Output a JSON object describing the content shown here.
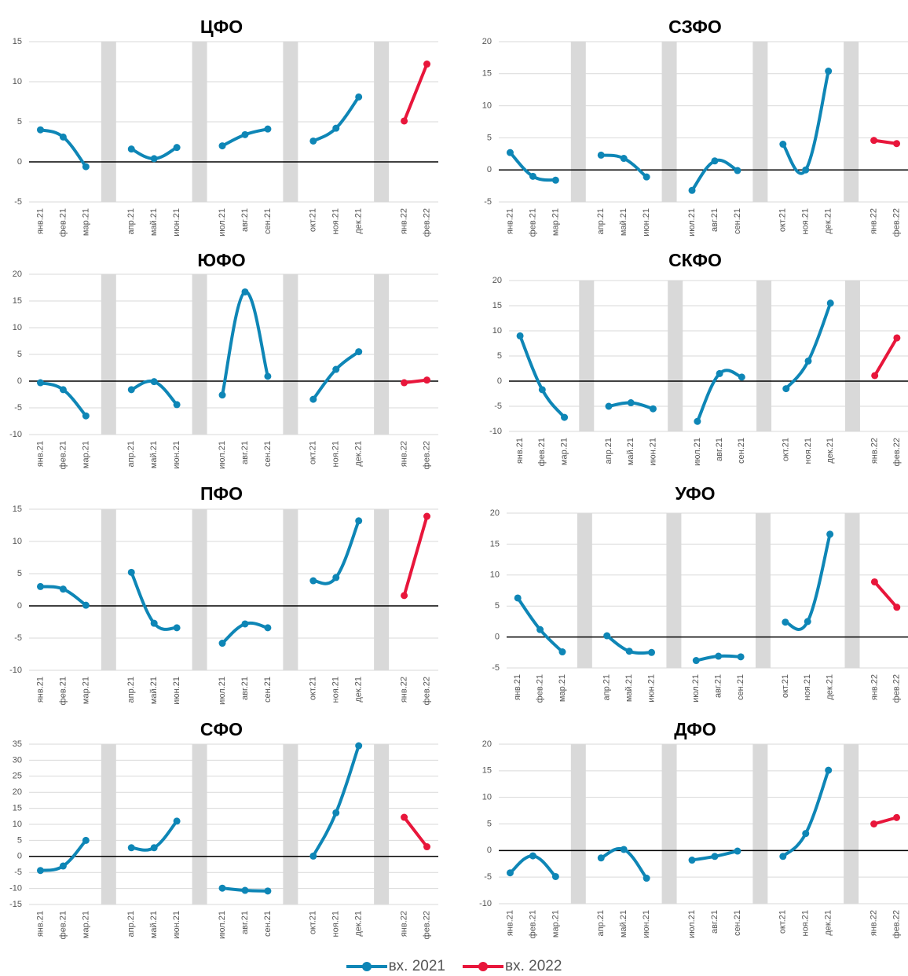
{
  "colors": {
    "s2021": "#0E86B6",
    "s2022": "#E8163B",
    "band": "#D9D9D9",
    "grid": "#D9D9D9",
    "tick": "#555555",
    "zero": "#000000"
  },
  "legend": [
    {
      "label": "вх. 2021",
      "color": "#0E86B6"
    },
    {
      "label": "вх. 2022",
      "color": "#E8163B"
    }
  ],
  "chart_data": [
    {
      "type": "line",
      "title": "ЦФО",
      "ylim": [
        -5,
        15
      ],
      "yticks": [
        -5,
        0,
        5,
        10,
        15
      ],
      "categories": [
        "янв.21",
        "фев.21",
        "мар.21",
        "",
        "апр.21",
        "май.21",
        "июн.21",
        "",
        "июл.21",
        "авг.21",
        "сен.21",
        "",
        "окт.21",
        "ноя.21",
        "дек.21",
        "",
        "янв.22",
        "фев.22"
      ],
      "series": [
        {
          "name": "вх. 2021",
          "segments": [
            [
              4.0,
              3.1,
              -0.6
            ],
            [
              1.6,
              0.4,
              1.8
            ],
            [
              2.0,
              3.4,
              4.1
            ],
            [
              2.6,
              4.2,
              8.1
            ]
          ]
        },
        {
          "name": "вх. 2022",
          "segments": [
            [
              5.1,
              12.2
            ]
          ]
        }
      ]
    },
    {
      "type": "line",
      "title": "СЗФО",
      "ylim": [
        -5,
        20
      ],
      "yticks": [
        -5,
        0,
        5,
        10,
        15,
        20
      ],
      "categories": [
        "янв.21",
        "фев.21",
        "мар.21",
        "",
        "апр.21",
        "май.21",
        "июн.21",
        "",
        "июл.21",
        "авг.21",
        "сен.21",
        "",
        "окт.21",
        "ноя.21",
        "дек.21",
        "",
        "янв.22",
        "фев.22"
      ],
      "series": [
        {
          "name": "вх. 2021",
          "segments": [
            [
              2.7,
              -1.0,
              -1.6
            ],
            [
              2.3,
              1.8,
              -1.1
            ],
            [
              -3.2,
              1.4,
              -0.1
            ],
            [
              4.0,
              0.0,
              15.4
            ]
          ]
        },
        {
          "name": "вх. 2022",
          "segments": [
            [
              4.6,
              4.1
            ]
          ]
        }
      ]
    },
    {
      "type": "line",
      "title": "ЮФО",
      "ylim": [
        -10,
        20
      ],
      "yticks": [
        -10,
        -5,
        0,
        5,
        10,
        15,
        20
      ],
      "categories": [
        "янв.21",
        "фев.21",
        "мар.21",
        "",
        "апр.21",
        "май.21",
        "июн.21",
        "",
        "июл.21",
        "авг.21",
        "сен.21",
        "",
        "окт.21",
        "ноя.21",
        "дек.21",
        "",
        "янв.22",
        "фев.22"
      ],
      "series": [
        {
          "name": "вх. 2021",
          "segments": [
            [
              -0.3,
              -1.6,
              -6.5
            ],
            [
              -1.6,
              -0.1,
              -4.4
            ],
            [
              -2.6,
              16.7,
              0.9
            ],
            [
              -3.4,
              2.2,
              5.5
            ]
          ]
        },
        {
          "name": "вх. 2022",
          "segments": [
            [
              -0.3,
              0.2
            ]
          ]
        }
      ]
    },
    {
      "type": "line",
      "title": "СКФО",
      "ylim": [
        -10,
        20
      ],
      "yticks": [
        -10,
        -5,
        0,
        5,
        10,
        15,
        20
      ],
      "categories": [
        "янв.21",
        "фев.21",
        "мар.21",
        "",
        "апр.21",
        "май.21",
        "июн.21",
        "",
        "июл.21",
        "авг.21",
        "сен.21",
        "",
        "окт.21",
        "ноя.21",
        "дек.21",
        "",
        "янв.22",
        "фев.22"
      ],
      "series": [
        {
          "name": "вх. 2021",
          "segments": [
            [
              9.0,
              -1.7,
              -7.2
            ],
            [
              -5.0,
              -4.3,
              -5.5
            ],
            [
              -8.0,
              1.5,
              0.8
            ],
            [
              -1.5,
              4.0,
              15.5
            ]
          ]
        },
        {
          "name": "вх. 2022",
          "segments": [
            [
              1.1,
              8.6
            ]
          ]
        }
      ]
    },
    {
      "type": "line",
      "title": "ПФО",
      "ylim": [
        -10,
        15
      ],
      "yticks": [
        -10,
        -5,
        0,
        5,
        10,
        15
      ],
      "categories": [
        "янв.21",
        "фев.21",
        "мар.21",
        "",
        "апр.21",
        "май.21",
        "июн.21",
        "",
        "июл.21",
        "авг.21",
        "сен.21",
        "",
        "окт.21",
        "ноя.21",
        "дек.21",
        "",
        "янв.22",
        "фев.22"
      ],
      "series": [
        {
          "name": "вх. 2021",
          "segments": [
            [
              3.0,
              2.6,
              0.1
            ],
            [
              5.2,
              -2.7,
              -3.4
            ],
            [
              -5.8,
              -2.8,
              -3.4
            ],
            [
              3.9,
              4.4,
              13.2
            ]
          ]
        },
        {
          "name": "вх. 2022",
          "segments": [
            [
              1.6,
              13.9
            ]
          ]
        }
      ]
    },
    {
      "type": "line",
      "title": "УФО",
      "ylim": [
        -5,
        20
      ],
      "yticks": [
        -5,
        0,
        5,
        10,
        15,
        20
      ],
      "categories": [
        "янв.21",
        "фев.21",
        "мар.21",
        "",
        "апр.21",
        "май.21",
        "июн.21",
        "",
        "июл.21",
        "авг.21",
        "сен.21",
        "",
        "окт.21",
        "ноя.21",
        "дек.21",
        "",
        "янв.22",
        "фев.22"
      ],
      "series": [
        {
          "name": "вх. 2021",
          "segments": [
            [
              6.3,
              1.2,
              -2.4
            ],
            [
              0.2,
              -2.3,
              -2.5
            ],
            [
              -3.8,
              -3.1,
              -3.2
            ],
            [
              2.4,
              2.5,
              16.6
            ]
          ]
        },
        {
          "name": "вх. 2022",
          "segments": [
            [
              8.9,
              4.8
            ]
          ]
        }
      ]
    },
    {
      "type": "line",
      "title": "СФО",
      "ylim": [
        -15,
        35
      ],
      "yticks": [
        -15,
        -10,
        -5,
        0,
        5,
        10,
        15,
        20,
        25,
        30,
        35
      ],
      "categories": [
        "янв.21",
        "фев.21",
        "мар.21",
        "",
        "апр.21",
        "май.21",
        "июн.21",
        "",
        "июл.21",
        "авг.21",
        "сен.21",
        "",
        "окт.21",
        "ноя.21",
        "дек.21",
        "",
        "янв.22",
        "фев.22"
      ],
      "series": [
        {
          "name": "вх. 2021",
          "segments": [
            [
              -4.4,
              -3.0,
              5.0
            ],
            [
              2.7,
              2.7,
              11.0
            ],
            [
              -9.9,
              -10.6,
              -10.8
            ],
            [
              0.1,
              13.6,
              34.5
            ]
          ]
        },
        {
          "name": "вх. 2022",
          "segments": [
            [
              12.2,
              3.0
            ]
          ]
        }
      ]
    },
    {
      "type": "line",
      "title": "ДФО",
      "ylim": [
        -10,
        20
      ],
      "yticks": [
        -10,
        -5,
        0,
        5,
        10,
        15,
        20
      ],
      "categories": [
        "янв.21",
        "фев.21",
        "мар.21",
        "",
        "апр.21",
        "май.21",
        "июн.21",
        "",
        "июл.21",
        "авг.21",
        "сен.21",
        "",
        "окт.21",
        "ноя.21",
        "дек.21",
        "",
        "янв.22",
        "фев.22"
      ],
      "series": [
        {
          "name": "вх. 2021",
          "segments": [
            [
              -4.2,
              -1.0,
              -4.9
            ],
            [
              -1.4,
              0.2,
              -5.2
            ],
            [
              -1.8,
              -1.1,
              -0.1
            ],
            [
              -1.1,
              3.2,
              15.1
            ]
          ]
        },
        {
          "name": "вх. 2022",
          "segments": [
            [
              5.0,
              6.2
            ]
          ]
        }
      ]
    }
  ]
}
